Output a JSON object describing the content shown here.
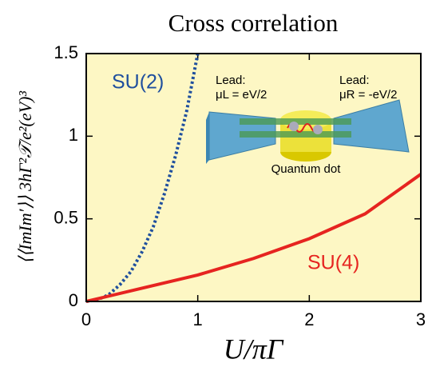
{
  "chart_data": {
    "type": "line",
    "title": "Cross correlation",
    "x_label": "U/πΓ",
    "y_label": "⟨⟨ImIm′⟩⟩ 3hΓ²𝒯/e²(eV)³",
    "xlim": [
      0,
      3
    ],
    "ylim": [
      0,
      1.5
    ],
    "xticks": [
      0,
      1,
      2,
      3
    ],
    "yticks": [
      0,
      0.5,
      1,
      1.5
    ],
    "grid": false,
    "background": "#fdf7c4",
    "series": [
      {
        "name": "SU(2)",
        "color": "#1f4f9e",
        "dashed": true,
        "x": [
          0,
          0.1,
          0.2,
          0.3,
          0.4,
          0.5,
          0.6,
          0.7,
          0.8,
          0.9,
          1.0
        ],
        "values": [
          0,
          0.01,
          0.04,
          0.1,
          0.18,
          0.3,
          0.45,
          0.65,
          0.88,
          1.15,
          1.5
        ]
      },
      {
        "name": "SU(4)",
        "color": "#e62420",
        "dashed": false,
        "x": [
          0,
          0.5,
          1,
          1.5,
          2,
          2.5,
          3
        ],
        "values": [
          0,
          0.08,
          0.16,
          0.26,
          0.38,
          0.53,
          0.77
        ]
      }
    ],
    "inset": {
      "left_lead": "Lead:",
      "left_mu": "μL = eV/2",
      "right_lead": "Lead:",
      "right_mu": "μR = -eV/2",
      "dot": "Quantum dot"
    }
  }
}
